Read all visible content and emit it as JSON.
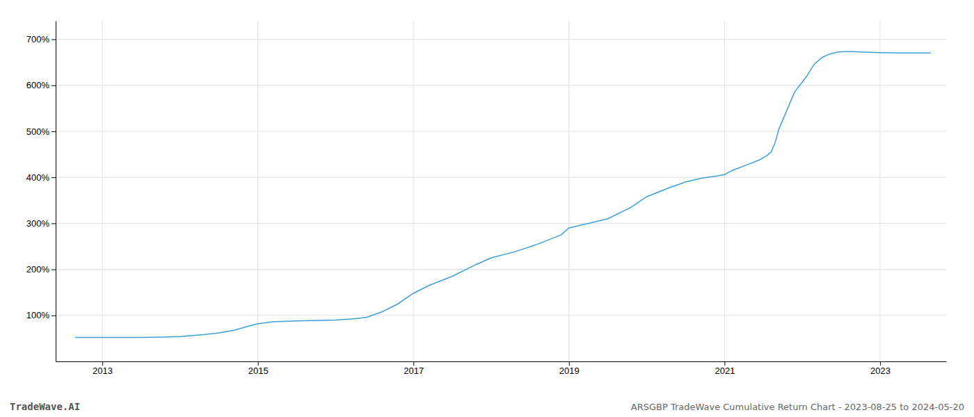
{
  "chart_data": {
    "type": "line",
    "title": "ARSGBP TradeWave Cumulative Return Chart - 2023-08-25 to 2024-05-20",
    "annotations": [
      "TradeWave.AI"
    ],
    "color": "#3d9fd8",
    "grid": true,
    "xlim": [
      2012.4,
      2023.85
    ],
    "ylim": [
      0,
      740
    ],
    "xticks": [
      2013,
      2015,
      2017,
      2019,
      2021,
      2023
    ],
    "yticks": [
      {
        "value": 100,
        "label": "100%"
      },
      {
        "value": 200,
        "label": "200%"
      },
      {
        "value": 300,
        "label": "300%"
      },
      {
        "value": 400,
        "label": "400%"
      },
      {
        "value": 500,
        "label": "500%"
      },
      {
        "value": 600,
        "label": "600%"
      },
      {
        "value": 700,
        "label": "700%"
      }
    ],
    "x": [
      2012.65,
      2013.0,
      2013.5,
      2013.8,
      2014.0,
      2014.3,
      2014.5,
      2014.7,
      2014.85,
      2015.0,
      2015.2,
      2015.5,
      2015.8,
      2016.0,
      2016.2,
      2016.4,
      2016.6,
      2016.8,
      2017.0,
      2017.2,
      2017.5,
      2017.8,
      2018.0,
      2018.3,
      2018.6,
      2018.9,
      2019.0,
      2019.2,
      2019.5,
      2019.8,
      2020.0,
      2020.3,
      2020.5,
      2020.7,
      2020.9,
      2021.0,
      2021.1,
      2021.3,
      2021.45,
      2021.5,
      2021.55,
      2021.6,
      2021.65,
      2021.7,
      2021.8,
      2021.9,
      2022.05,
      2022.15,
      2022.25,
      2022.35,
      2022.45,
      2022.55,
      2022.65,
      2022.8,
      2023.0,
      2023.3,
      2023.65
    ],
    "values": [
      52,
      52,
      52,
      53,
      54,
      58,
      62,
      68,
      75,
      82,
      86,
      88,
      89,
      90,
      92,
      96,
      108,
      125,
      148,
      165,
      185,
      210,
      225,
      238,
      255,
      275,
      290,
      298,
      310,
      335,
      358,
      378,
      390,
      398,
      403,
      406,
      415,
      428,
      438,
      443,
      448,
      455,
      475,
      505,
      545,
      585,
      618,
      645,
      660,
      668,
      672,
      673,
      673,
      672,
      671,
      670,
      670
    ]
  }
}
